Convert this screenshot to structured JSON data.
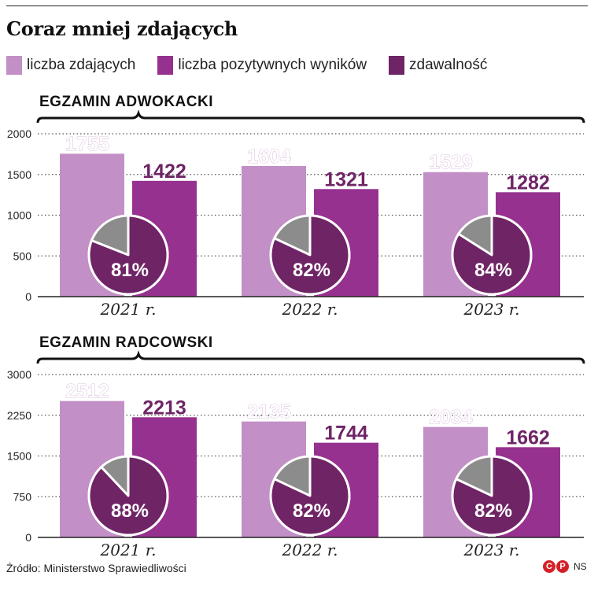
{
  "title": "Coraz mniej zdających",
  "legend": [
    {
      "label": "liczba zdających",
      "color": "#c28fc6"
    },
    {
      "label": "liczba pozytywnych wyników",
      "color": "#96318f"
    },
    {
      "label": "zdawalność",
      "color": "#6f2466"
    }
  ],
  "colors": {
    "pass_slice": "#6f2466",
    "fail_slice": "#8c8c8c",
    "grid": "#555555",
    "axis": "#222222"
  },
  "chart_data": [
    {
      "type": "bar",
      "title": "EGZAMIN ADWOKACKI",
      "categories": [
        "2021 r.",
        "2022 r.",
        "2023 r."
      ],
      "ylim": [
        0,
        2000
      ],
      "yticks": [
        0,
        500,
        1000,
        1500,
        2000
      ],
      "series": [
        {
          "name": "liczba zdających",
          "values": [
            1755,
            1604,
            1529
          ]
        },
        {
          "name": "liczba pozytywnych wyników",
          "values": [
            1422,
            1321,
            1282
          ]
        }
      ],
      "pass_rate": {
        "name": "zdawalność",
        "values": [
          81,
          82,
          84
        ],
        "labels": [
          "81%",
          "82%",
          "84%"
        ]
      }
    },
    {
      "type": "bar",
      "title": "EGZAMIN RADCOWSKI",
      "categories": [
        "2021 r.",
        "2022 r.",
        "2023 r."
      ],
      "ylim": [
        0,
        3000
      ],
      "yticks": [
        0,
        750,
        1500,
        2250,
        3000
      ],
      "series": [
        {
          "name": "liczba zdających",
          "values": [
            2512,
            2135,
            2034
          ]
        },
        {
          "name": "liczba pozytywnych wyników",
          "values": [
            2213,
            1744,
            1662
          ]
        }
      ],
      "pass_rate": {
        "name": "zdawalność",
        "values": [
          88,
          82,
          82
        ],
        "labels": [
          "88%",
          "82%",
          "82%"
        ]
      }
    }
  ],
  "source": "Źródło: Ministerstwo Sprawiedliwości",
  "brand": {
    "letters": [
      "C",
      "P"
    ],
    "initials": "NS"
  }
}
